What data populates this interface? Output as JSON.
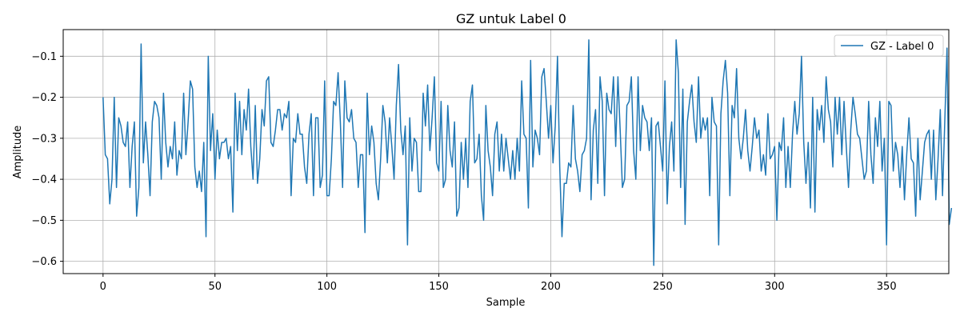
{
  "chart_data": {
    "type": "line",
    "title": "GZ untuk Label 0",
    "xlabel": "Sample",
    "ylabel": "Amplitude",
    "xlim": [
      -17.8,
      377.8
    ],
    "ylim": [
      -0.63,
      -0.035
    ],
    "xticks": [
      0,
      50,
      100,
      150,
      200,
      250,
      300,
      350
    ],
    "xtick_labels": [
      "0",
      "50",
      "100",
      "150",
      "200",
      "250",
      "300",
      "350"
    ],
    "yticks": [
      -0.6,
      -0.5,
      -0.4,
      -0.3,
      -0.2,
      -0.1
    ],
    "ytick_labels": [
      "−0.6",
      "−0.5",
      "−0.4",
      "−0.3",
      "−0.2",
      "−0.1"
    ],
    "grid": true,
    "legend_position": "top-right",
    "colors": {
      "series": "#1f77b4",
      "grid": "#b0b0b0",
      "axes": "#000000"
    },
    "series": [
      {
        "name": "GZ - Label 0",
        "x_start": 0,
        "x_step": 1,
        "values": [
          -0.2,
          -0.34,
          -0.35,
          -0.46,
          -0.4,
          -0.2,
          -0.42,
          -0.25,
          -0.27,
          -0.31,
          -0.32,
          -0.26,
          -0.42,
          -0.32,
          -0.26,
          -0.49,
          -0.42,
          -0.07,
          -0.36,
          -0.26,
          -0.34,
          -0.44,
          -0.26,
          -0.21,
          -0.22,
          -0.25,
          -0.4,
          -0.19,
          -0.31,
          -0.37,
          -0.32,
          -0.35,
          -0.26,
          -0.39,
          -0.33,
          -0.35,
          -0.19,
          -0.34,
          -0.26,
          -0.16,
          -0.18,
          -0.37,
          -0.42,
          -0.38,
          -0.43,
          -0.31,
          -0.54,
          -0.1,
          -0.33,
          -0.24,
          -0.4,
          -0.28,
          -0.35,
          -0.31,
          -0.31,
          -0.3,
          -0.35,
          -0.32,
          -0.48,
          -0.19,
          -0.33,
          -0.21,
          -0.34,
          -0.23,
          -0.28,
          -0.18,
          -0.32,
          -0.4,
          -0.22,
          -0.41,
          -0.35,
          -0.23,
          -0.27,
          -0.16,
          -0.15,
          -0.31,
          -0.32,
          -0.28,
          -0.23,
          -0.23,
          -0.28,
          -0.24,
          -0.25,
          -0.21,
          -0.44,
          -0.3,
          -0.31,
          -0.24,
          -0.29,
          -0.29,
          -0.37,
          -0.41,
          -0.29,
          -0.24,
          -0.44,
          -0.25,
          -0.25,
          -0.42,
          -0.39,
          -0.16,
          -0.44,
          -0.44,
          -0.35,
          -0.21,
          -0.22,
          -0.14,
          -0.26,
          -0.42,
          -0.16,
          -0.25,
          -0.26,
          -0.23,
          -0.3,
          -0.31,
          -0.42,
          -0.34,
          -0.34,
          -0.53,
          -0.19,
          -0.34,
          -0.27,
          -0.31,
          -0.41,
          -0.45,
          -0.35,
          -0.22,
          -0.26,
          -0.36,
          -0.25,
          -0.32,
          -0.4,
          -0.22,
          -0.12,
          -0.28,
          -0.34,
          -0.27,
          -0.56,
          -0.25,
          -0.38,
          -0.3,
          -0.31,
          -0.43,
          -0.43,
          -0.19,
          -0.27,
          -0.17,
          -0.33,
          -0.25,
          -0.15,
          -0.36,
          -0.38,
          -0.21,
          -0.42,
          -0.4,
          -0.22,
          -0.33,
          -0.37,
          -0.26,
          -0.49,
          -0.47,
          -0.31,
          -0.4,
          -0.3,
          -0.42,
          -0.21,
          -0.17,
          -0.36,
          -0.35,
          -0.29,
          -0.44,
          -0.5,
          -0.22,
          -0.33,
          -0.37,
          -0.44,
          -0.29,
          -0.26,
          -0.38,
          -0.29,
          -0.38,
          -0.3,
          -0.35,
          -0.4,
          -0.33,
          -0.4,
          -0.3,
          -0.38,
          -0.16,
          -0.29,
          -0.3,
          -0.47,
          -0.11,
          -0.37,
          -0.28,
          -0.3,
          -0.34,
          -0.15,
          -0.13,
          -0.21,
          -0.3,
          -0.22,
          -0.36,
          -0.27,
          -0.1,
          -0.37,
          -0.54,
          -0.41,
          -0.41,
          -0.36,
          -0.37,
          -0.22,
          -0.35,
          -0.38,
          -0.43,
          -0.34,
          -0.33,
          -0.3,
          -0.06,
          -0.45,
          -0.28,
          -0.23,
          -0.41,
          -0.15,
          -0.21,
          -0.44,
          -0.19,
          -0.23,
          -0.24,
          -0.15,
          -0.32,
          -0.15,
          -0.28,
          -0.42,
          -0.4,
          -0.22,
          -0.21,
          -0.15,
          -0.33,
          -0.4,
          -0.15,
          -0.33,
          -0.22,
          -0.25,
          -0.26,
          -0.33,
          -0.25,
          -0.61,
          -0.27,
          -0.26,
          -0.32,
          -0.38,
          -0.16,
          -0.46,
          -0.32,
          -0.26,
          -0.38,
          -0.06,
          -0.14,
          -0.42,
          -0.18,
          -0.51,
          -0.26,
          -0.21,
          -0.17,
          -0.26,
          -0.31,
          -0.15,
          -0.3,
          -0.25,
          -0.28,
          -0.25,
          -0.44,
          -0.2,
          -0.26,
          -0.27,
          -0.56,
          -0.24,
          -0.16,
          -0.11,
          -0.19,
          -0.44,
          -0.22,
          -0.25,
          -0.13,
          -0.3,
          -0.35,
          -0.3,
          -0.23,
          -0.33,
          -0.38,
          -0.32,
          -0.25,
          -0.3,
          -0.28,
          -0.38,
          -0.34,
          -0.39,
          -0.24,
          -0.35,
          -0.34,
          -0.32,
          -0.5,
          -0.31,
          -0.33,
          -0.25,
          -0.42,
          -0.32,
          -0.42,
          -0.29,
          -0.21,
          -0.29,
          -0.24,
          -0.1,
          -0.31,
          -0.41,
          -0.31,
          -0.47,
          -0.2,
          -0.48,
          -0.23,
          -0.28,
          -0.22,
          -0.31,
          -0.15,
          -0.23,
          -0.26,
          -0.37,
          -0.2,
          -0.29,
          -0.2,
          -0.34,
          -0.21,
          -0.32,
          -0.42,
          -0.28,
          -0.2,
          -0.24,
          -0.29,
          -0.3,
          -0.35,
          -0.4,
          -0.38,
          -0.21,
          -0.34,
          -0.41,
          -0.25,
          -0.32,
          -0.21,
          -0.38,
          -0.3,
          -0.56,
          -0.21,
          -0.22,
          -0.38,
          -0.31,
          -0.34,
          -0.42,
          -0.32,
          -0.45,
          -0.34,
          -0.25,
          -0.35,
          -0.36,
          -0.49,
          -0.3,
          -0.45,
          -0.38,
          -0.31,
          -0.29,
          -0.28,
          -0.4,
          -0.28,
          -0.45,
          -0.35,
          -0.23,
          -0.44,
          -0.26,
          -0.08,
          -0.51,
          -0.47
        ]
      }
    ]
  }
}
